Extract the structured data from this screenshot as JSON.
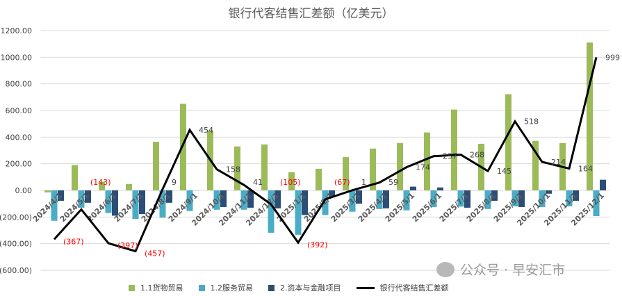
{
  "chart_data": {
    "type": "bar",
    "title": "银行代客结售汇差额（亿美元）",
    "categories": [
      "2024/4/1",
      "2024/5/1",
      "2024/6/1",
      "2024/7/1",
      "2024/8/1",
      "2024/9/1",
      "2024/10/1",
      "2024/11/1",
      "2024/12/1",
      "2025/1/1",
      "2025/2/1",
      "2025/3/1",
      "2025/4/1",
      "2025/5/1",
      "2025/6/1",
      "2025/7/1",
      "2025/8/1",
      "2025/9/1",
      "2025/10/1",
      "2025/11/1",
      "2025/12/1"
    ],
    "ylim": [
      -600,
      1200
    ],
    "yticks": [
      "(600.00)",
      "(400.00)",
      "(200.00)",
      "0.00",
      "200.00",
      "400.00",
      "600.00",
      "800.00",
      "1000.00",
      "1200.00"
    ],
    "ytick_values": [
      -600,
      -400,
      -200,
      0,
      200,
      400,
      600,
      800,
      1000,
      1200
    ],
    "grid": true,
    "legend": "bottom",
    "series": [
      {
        "name": "1.1货物贸易",
        "type": "bar",
        "color": "#9bbb59",
        "values": [
          -15,
          190,
          65,
          48,
          365,
          650,
          450,
          330,
          345,
          137,
          162,
          250,
          314,
          356,
          435,
          607,
          350,
          722,
          372,
          356,
          1110
        ]
      },
      {
        "name": "1.2服务贸易",
        "type": "bar",
        "color": "#4bacc6",
        "values": [
          -228,
          -130,
          -170,
          -215,
          -205,
          -155,
          -145,
          -145,
          -318,
          -333,
          -185,
          -160,
          -140,
          -150,
          -125,
          -122,
          -140,
          -120,
          -125,
          -120,
          -193
        ]
      },
      {
        "name": "2.资本与金融项目",
        "type": "bar",
        "color": "#2c4d75",
        "values": [
          -78,
          -93,
          -190,
          -178,
          -93,
          0,
          -125,
          -130,
          -135,
          -185,
          -50,
          -100,
          -135,
          28,
          22,
          -130,
          -78,
          -125,
          -25,
          -78,
          80
        ]
      },
      {
        "name": "银行代客结售汇差额",
        "type": "line",
        "color": "#000000",
        "values": [
          -367,
          -143,
          -397,
          -457,
          9,
          454,
          158,
          41,
          -105,
          -392,
          -67,
          1,
          59,
          174,
          257,
          268,
          145,
          518,
          214,
          164,
          999
        ],
        "labels": [
          "(367)",
          "(143)",
          "(397)",
          "(457)",
          "9",
          "454",
          "158",
          "41",
          "(105)",
          "(392)",
          "(67)",
          "1",
          "59",
          "174",
          "257",
          "268",
          "145",
          "518",
          "214",
          "164",
          "999"
        ]
      }
    ]
  },
  "watermark": "公众号 · 早安汇市"
}
